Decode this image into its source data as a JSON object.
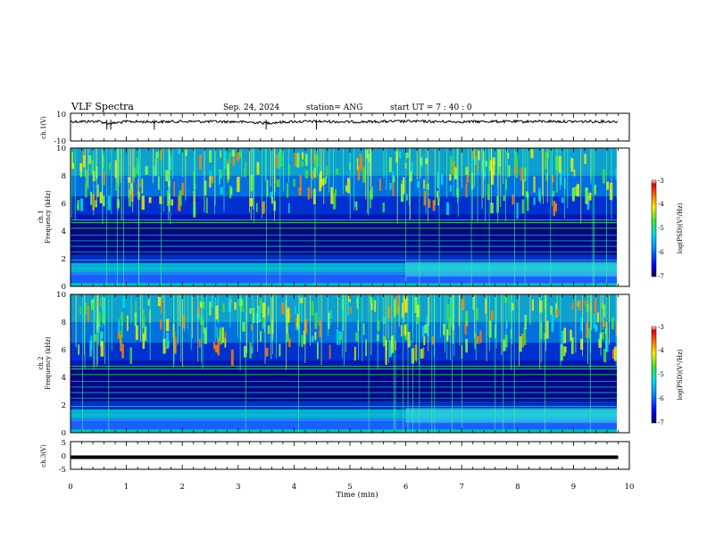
{
  "header": {
    "title": "VLF Spectra",
    "date": "Sep. 24, 2024",
    "station": "station= ANG",
    "start": "start  UT =   7 : 40 : 0"
  },
  "chart_data": [
    {
      "type": "line",
      "name": "ch1-waveform",
      "ylabel": "ch.1(V)",
      "ylim": [
        -10,
        10
      ],
      "yticks": [
        "10",
        "-10"
      ],
      "x": [
        0,
        0.5,
        0.7,
        1.0,
        1.5,
        2.0,
        2.5,
        3.0,
        3.5,
        4.0,
        4.5,
        5.0,
        5.5,
        6.0,
        6.5,
        7.0,
        7.5,
        8.0,
        8.5,
        9.0,
        9.5,
        9.8
      ],
      "values": [
        4.0,
        4.2,
        2.5,
        4.0,
        3.8,
        4.1,
        4.0,
        3.9,
        3.0,
        4.0,
        4.1,
        3.8,
        4.0,
        4.2,
        4.0,
        3.9,
        4.1,
        4.0,
        4.2,
        4.0,
        4.1,
        4.0
      ]
    },
    {
      "type": "heatmap",
      "name": "ch1-spectrogram",
      "ylabel": "ch.1\nFrequency (kHz)",
      "ylim": [
        0,
        10
      ],
      "yticks": [
        "0",
        "2",
        "4",
        "6",
        "8",
        "10"
      ],
      "colorbar": {
        "label": "log(PSD)(V²/Hz)",
        "range": [
          -7,
          -3
        ],
        "ticks": [
          "-3",
          "-4",
          "-5",
          "-6",
          "-7"
        ]
      }
    },
    {
      "type": "heatmap",
      "name": "ch2-spectrogram",
      "ylabel": "ch.2\nFrequency (kHz)",
      "ylim": [
        0,
        10
      ],
      "yticks": [
        "0",
        "2",
        "4",
        "6",
        "8",
        "10"
      ],
      "colorbar": {
        "label": "log(PSD)(V²/Hz)",
        "range": [
          -7,
          -3
        ],
        "ticks": [
          "-3",
          "-4",
          "-5",
          "-6",
          "-7"
        ]
      }
    },
    {
      "type": "line",
      "name": "ch3-waveform",
      "ylabel": "ch.3(V)",
      "ylim": [
        -5,
        5
      ],
      "yticks": [
        "5",
        "0",
        "-5"
      ],
      "x": [
        0,
        9.8
      ],
      "values": [
        0,
        0
      ]
    }
  ],
  "xaxis": {
    "label": "Time (min)",
    "range": [
      0,
      10
    ],
    "ticks": [
      "0",
      "1",
      "2",
      "3",
      "4",
      "5",
      "6",
      "7",
      "8",
      "9",
      "10"
    ]
  }
}
